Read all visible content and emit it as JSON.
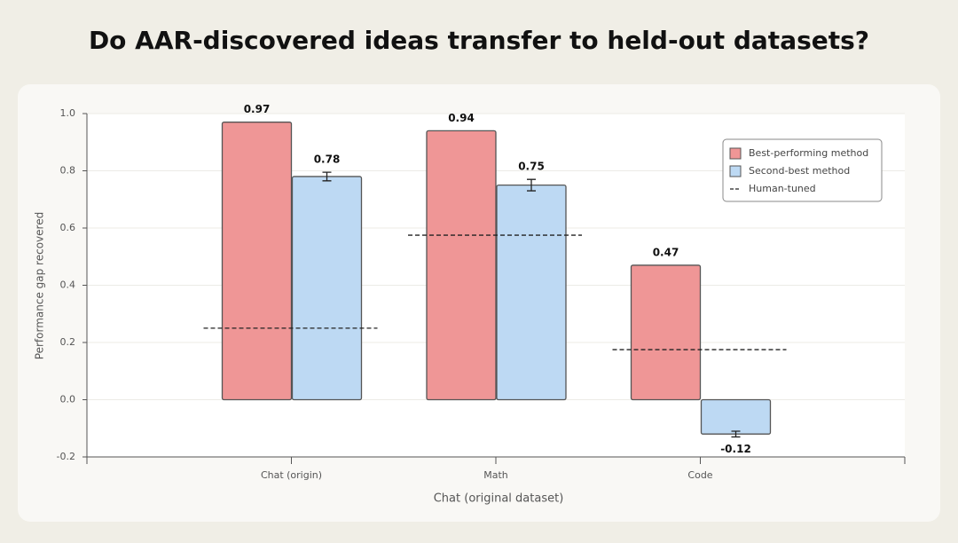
{
  "chart_data": {
    "type": "bar",
    "title": "Do AAR-discovered ideas transfer to held-out datasets?",
    "xlabel": "Chat (original dataset)",
    "ylabel": "Performance gap recovered",
    "categories": [
      "Chat (origin)",
      "Math",
      "Code"
    ],
    "series": [
      {
        "name": "Best-performing method",
        "color": "#ef9696",
        "values": [
          0.97,
          0.94,
          0.47
        ]
      },
      {
        "name": "Second-best method",
        "color": "#bdd9f3",
        "values": [
          0.78,
          0.75,
          -0.12
        ],
        "errors": [
          0.015,
          0.02,
          0.01
        ]
      }
    ],
    "reference_lines": {
      "name": "Human-tuned",
      "color": "#222222",
      "values": [
        0.25,
        0.575,
        0.175
      ]
    },
    "ylim": [
      -0.2,
      1.0
    ],
    "yticks": [
      {
        "value": 1,
        "label": "1.0"
      },
      0.8,
      0.6,
      0.4,
      0.2,
      {
        "value": 0,
        "label": "0.0"
      },
      -0.2
    ],
    "grid": true,
    "legend": "upper right"
  }
}
